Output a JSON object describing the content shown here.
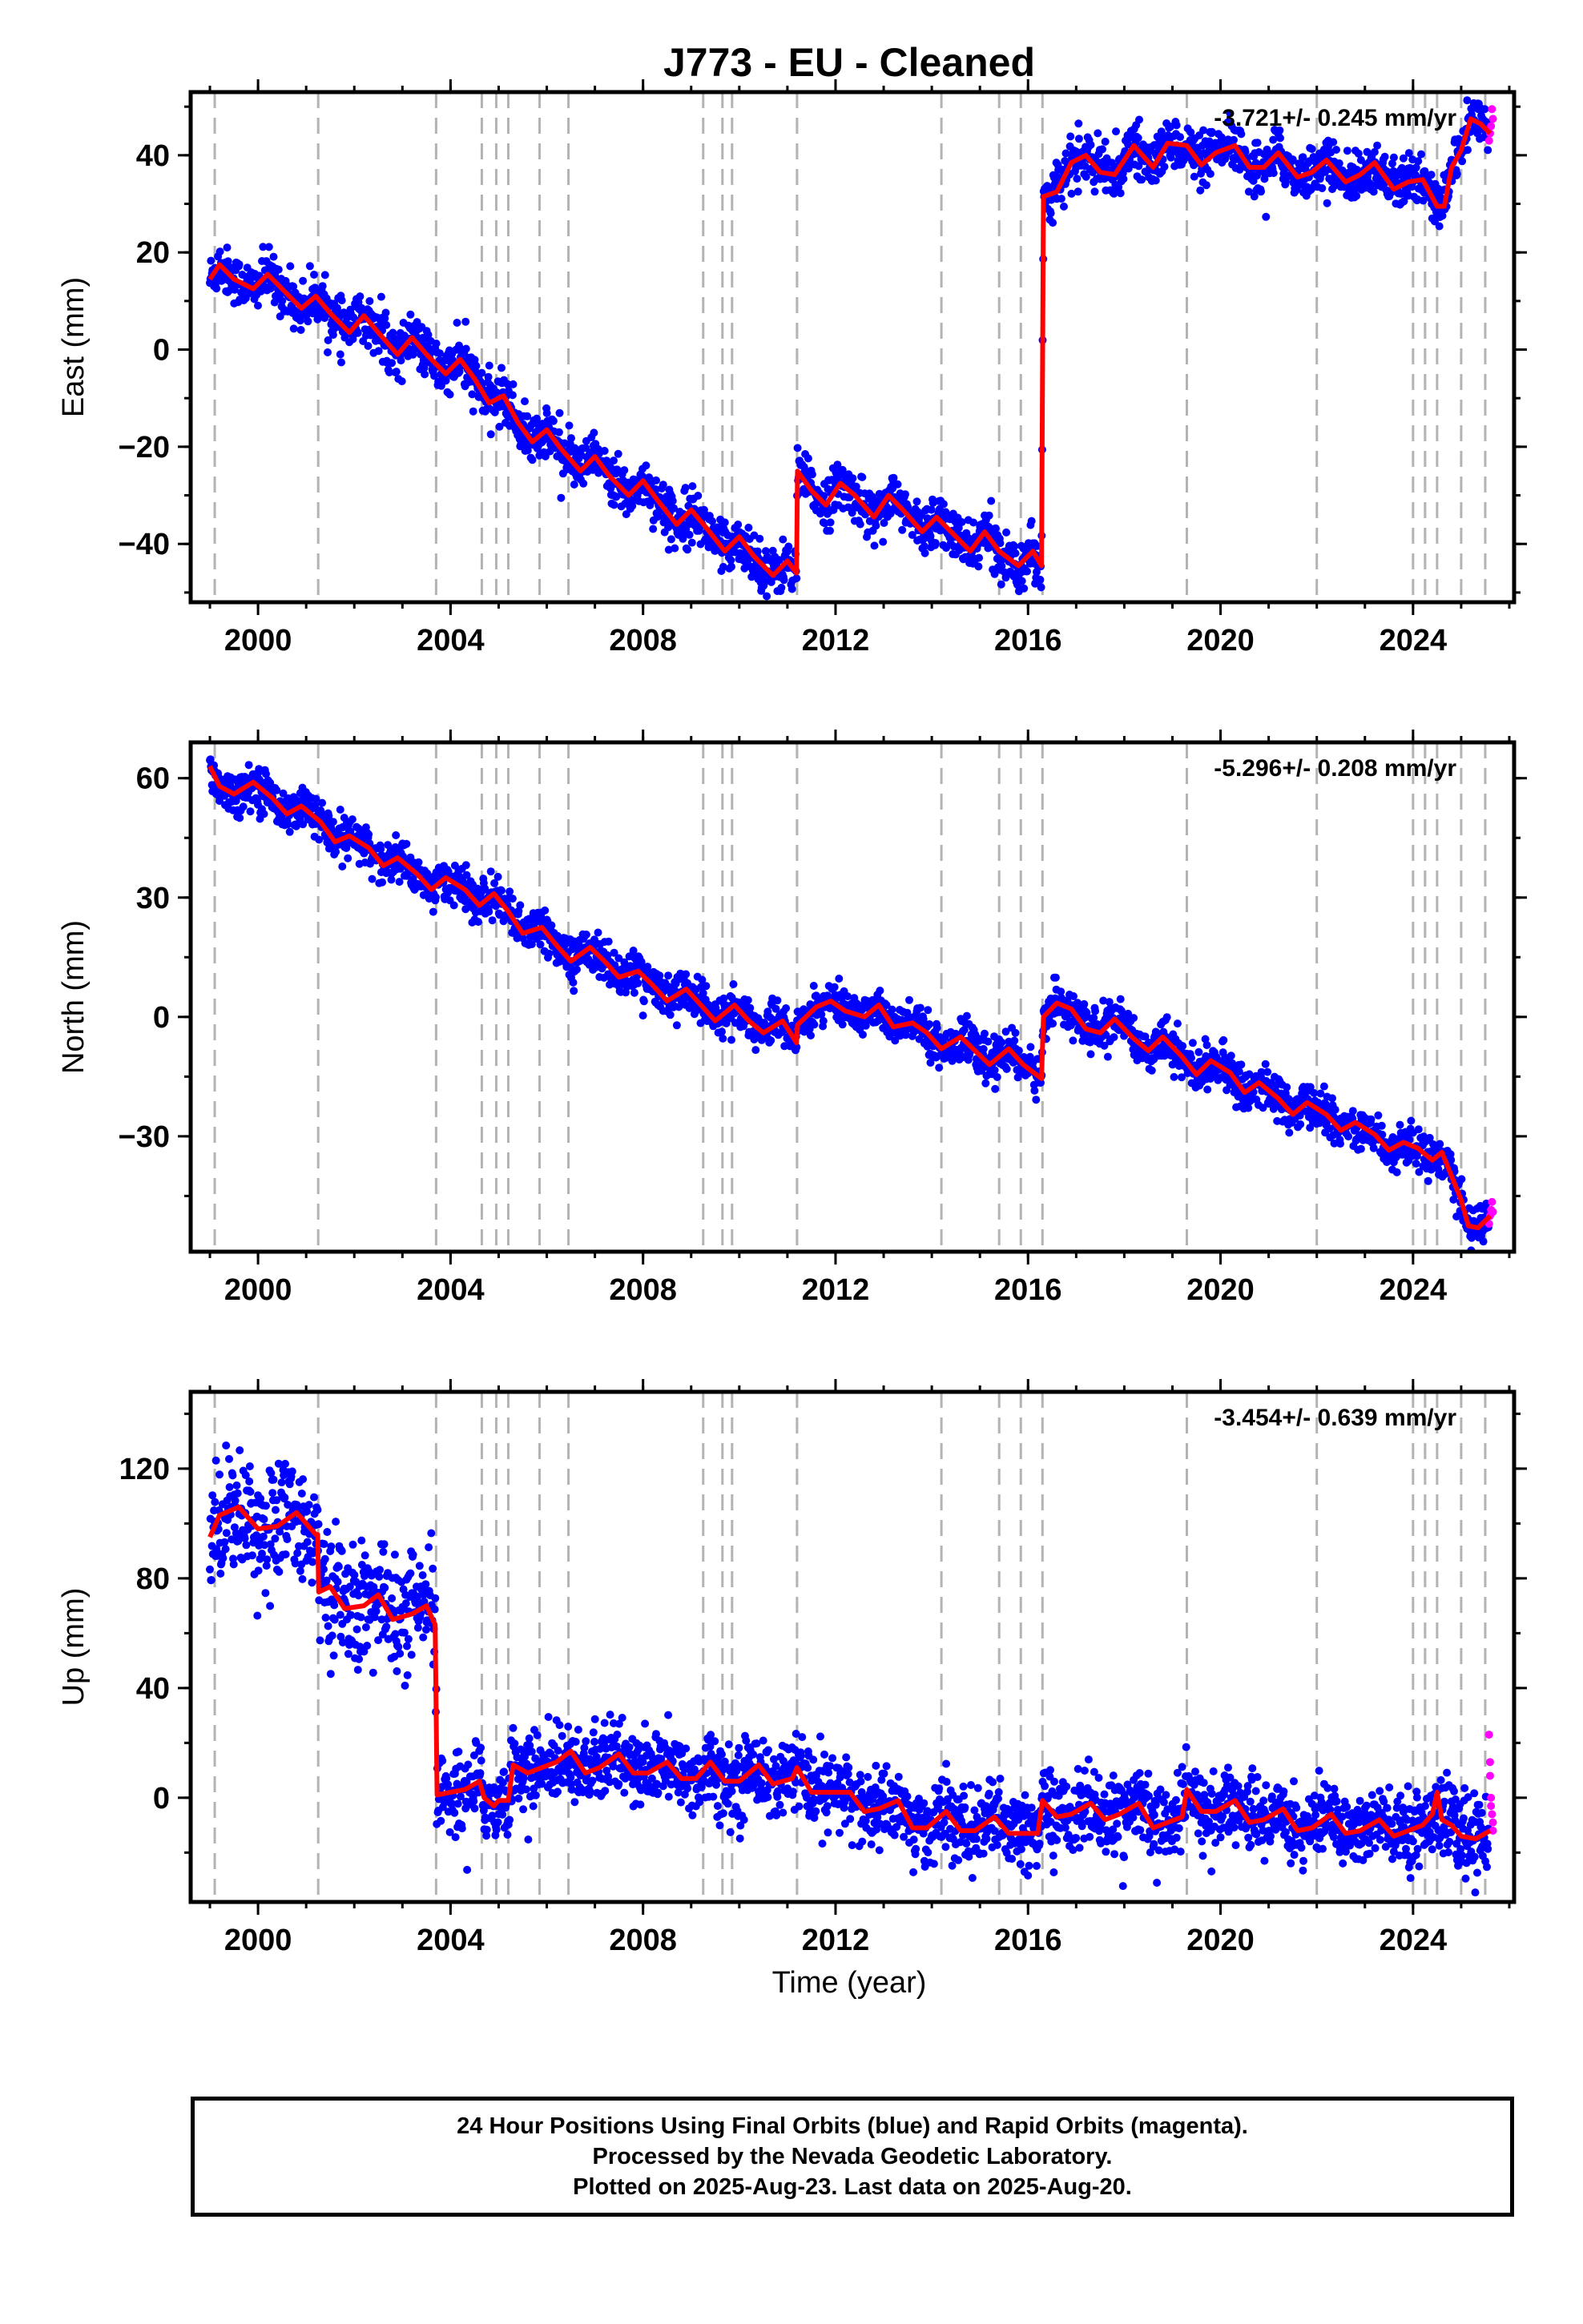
{
  "title": "J773  - EU - Cleaned",
  "xlabel": "Time (year)",
  "colors": {
    "final": "#0000ff",
    "rapid": "#ff00ff",
    "model": "#ff0000",
    "equipment_lines": "#b3b3b3"
  },
  "footer": {
    "line1": "24 Hour Positions Using Final Orbits (blue) and Rapid Orbits (magenta).",
    "line2": "Processed by the Nevada Geodetic Laboratory.",
    "line3": "Plotted on 2025-Aug-23. Last data on 2025-Aug-20."
  },
  "chart_data": [
    {
      "type": "scatter",
      "panel": "east",
      "ylabel": "East (mm)",
      "rate_text": "-3.721+/- 0.245 mm/yr",
      "xlim": [
        1998.6,
        2026.1
      ],
      "ylim": [
        -52,
        53
      ],
      "xticks": [
        2000,
        2004,
        2008,
        2012,
        2016,
        2020,
        2024
      ],
      "yticks": [
        -40,
        -20,
        0,
        20,
        40
      ],
      "grid": false,
      "dashed_vertical_lines_x": [
        1999.1,
        2001.25,
        2003.7,
        2004.65,
        2004.95,
        2005.2,
        2005.85,
        2006.45,
        2009.25,
        2009.65,
        2009.85,
        2011.2,
        2014.2,
        2015.4,
        2015.85,
        2016.3,
        2019.3,
        2022.0,
        2024.0,
        2024.25,
        2024.5,
        2025.0,
        2025.5
      ],
      "model_line": [
        [
          1999.0,
          14.5
        ],
        [
          1999.2,
          17.5
        ],
        [
          1999.5,
          14.5
        ],
        [
          1999.9,
          12.5
        ],
        [
          2000.2,
          15.5
        ],
        [
          2000.5,
          12.5
        ],
        [
          2000.9,
          8.5
        ],
        [
          2001.2,
          11.0
        ],
        [
          2001.5,
          7.5
        ],
        [
          2001.9,
          3.5
        ],
        [
          2002.2,
          7.0
        ],
        [
          2002.5,
          3.5
        ],
        [
          2002.9,
          -1.0
        ],
        [
          2003.2,
          2.5
        ],
        [
          2003.5,
          -1.0
        ],
        [
          2003.9,
          -5.0
        ],
        [
          2004.2,
          -2.0
        ],
        [
          2004.5,
          -6.0
        ],
        [
          2004.8,
          -11.0
        ],
        [
          2005.1,
          -9.5
        ],
        [
          2005.4,
          -15.0
        ],
        [
          2005.7,
          -19.0
        ],
        [
          2006.0,
          -16.5
        ],
        [
          2006.3,
          -20.5
        ],
        [
          2006.7,
          -25.0
        ],
        [
          2007.0,
          -22.0
        ],
        [
          2007.3,
          -26.0
        ],
        [
          2007.7,
          -30.0
        ],
        [
          2008.0,
          -27.0
        ],
        [
          2008.3,
          -31.0
        ],
        [
          2008.7,
          -36.0
        ],
        [
          2009.0,
          -33.0
        ],
        [
          2009.3,
          -36.5
        ],
        [
          2009.7,
          -41.5
        ],
        [
          2010.0,
          -38.5
        ],
        [
          2010.3,
          -42.5
        ],
        [
          2010.7,
          -46.5
        ],
        [
          2011.0,
          -43.5
        ],
        [
          2011.19,
          -46.0
        ],
        [
          2011.21,
          -25.0
        ],
        [
          2011.5,
          -29.0
        ],
        [
          2011.8,
          -32.0
        ],
        [
          2012.1,
          -27.5
        ],
        [
          2012.4,
          -30.0
        ],
        [
          2012.8,
          -34.5
        ],
        [
          2013.1,
          -30.0
        ],
        [
          2013.4,
          -33.0
        ],
        [
          2013.8,
          -37.5
        ],
        [
          2014.1,
          -34.5
        ],
        [
          2014.4,
          -37.5
        ],
        [
          2014.8,
          -41.5
        ],
        [
          2015.1,
          -37.5
        ],
        [
          2015.4,
          -41.5
        ],
        [
          2015.8,
          -44.5
        ],
        [
          2016.1,
          -41.5
        ],
        [
          2016.28,
          -44.5
        ],
        [
          2016.32,
          31.5
        ],
        [
          2016.6,
          32.5
        ],
        [
          2016.9,
          38.5
        ],
        [
          2017.2,
          40.0
        ],
        [
          2017.5,
          36.5
        ],
        [
          2017.8,
          36.0
        ],
        [
          2018.2,
          42.0
        ],
        [
          2018.6,
          37.5
        ],
        [
          2018.9,
          42.5
        ],
        [
          2019.3,
          42.0
        ],
        [
          2019.6,
          38.0
        ],
        [
          2019.9,
          40.5
        ],
        [
          2020.3,
          42.0
        ],
        [
          2020.6,
          37.5
        ],
        [
          2020.9,
          37.5
        ],
        [
          2021.2,
          40.5
        ],
        [
          2021.6,
          35.5
        ],
        [
          2021.9,
          36.5
        ],
        [
          2022.2,
          39.0
        ],
        [
          2022.6,
          34.5
        ],
        [
          2022.9,
          36.0
        ],
        [
          2023.2,
          38.5
        ],
        [
          2023.6,
          33.0
        ],
        [
          2023.9,
          34.5
        ],
        [
          2024.2,
          35.0
        ],
        [
          2024.5,
          29.5
        ],
        [
          2024.65,
          29.5
        ],
        [
          2024.8,
          37.5
        ],
        [
          2025.0,
          41.0
        ],
        [
          2025.2,
          47.5
        ],
        [
          2025.4,
          46.5
        ],
        [
          2025.6,
          44.5
        ]
      ],
      "noise_amplitude_mm": 2.5,
      "rapid_points": [
        [
          2025.58,
          43.0
        ],
        [
          2025.6,
          44.5
        ],
        [
          2025.62,
          46.0
        ],
        [
          2025.64,
          49.5
        ],
        [
          2025.66,
          47.5
        ]
      ],
      "series": [
        {
          "name": "Final Orbits",
          "color": "#0000ff"
        },
        {
          "name": "Rapid Orbits",
          "color": "#ff00ff"
        }
      ]
    },
    {
      "type": "scatter",
      "panel": "north",
      "ylabel": "North (mm)",
      "rate_text": "-5.296+/- 0.208 mm/yr",
      "xlim": [
        1998.6,
        2026.1
      ],
      "ylim": [
        -59,
        69
      ],
      "xticks": [
        2000,
        2004,
        2008,
        2012,
        2016,
        2020,
        2024
      ],
      "yticks": [
        -30,
        0,
        30,
        60
      ],
      "grid": false,
      "dashed_vertical_lines_x": [
        1999.1,
        2001.25,
        2003.7,
        2004.65,
        2004.95,
        2005.2,
        2005.85,
        2006.45,
        2009.25,
        2009.65,
        2009.85,
        2011.2,
        2014.2,
        2015.4,
        2015.85,
        2016.3,
        2019.3,
        2022.0,
        2024.0,
        2024.25,
        2024.5,
        2025.0,
        2025.5
      ],
      "model_line": [
        [
          1999.0,
          63.0
        ],
        [
          1999.2,
          58.0
        ],
        [
          1999.5,
          56.0
        ],
        [
          1999.9,
          59.0
        ],
        [
          2000.3,
          55.0
        ],
        [
          2000.6,
          51.0
        ],
        [
          2000.9,
          53.0
        ],
        [
          2001.3,
          49.0
        ],
        [
          2001.6,
          44.0
        ],
        [
          2001.9,
          45.5
        ],
        [
          2002.3,
          42.5
        ],
        [
          2002.6,
          38.0
        ],
        [
          2002.9,
          40.0
        ],
        [
          2003.3,
          36.0
        ],
        [
          2003.6,
          32.0
        ],
        [
          2003.9,
          35.0
        ],
        [
          2004.3,
          32.0
        ],
        [
          2004.6,
          28.0
        ],
        [
          2004.9,
          31.0
        ],
        [
          2005.2,
          26.5
        ],
        [
          2005.5,
          21.0
        ],
        [
          2005.9,
          22.5
        ],
        [
          2006.2,
          18.0
        ],
        [
          2006.5,
          14.0
        ],
        [
          2006.9,
          17.5
        ],
        [
          2007.2,
          14.0
        ],
        [
          2007.5,
          10.0
        ],
        [
          2007.9,
          11.5
        ],
        [
          2008.2,
          8.0
        ],
        [
          2008.5,
          4.0
        ],
        [
          2008.9,
          7.0
        ],
        [
          2009.2,
          3.0
        ],
        [
          2009.5,
          -1.0
        ],
        [
          2009.9,
          3.0
        ],
        [
          2010.2,
          -1.0
        ],
        [
          2010.5,
          -4.0
        ],
        [
          2010.9,
          -1.0
        ],
        [
          2011.19,
          -6.5
        ],
        [
          2011.21,
          -2.0
        ],
        [
          2011.6,
          2.5
        ],
        [
          2011.9,
          4.0
        ],
        [
          2012.2,
          1.5
        ],
        [
          2012.6,
          0.0
        ],
        [
          2012.9,
          3.0
        ],
        [
          2013.2,
          -2.5
        ],
        [
          2013.6,
          -1.5
        ],
        [
          2013.9,
          -4.0
        ],
        [
          2014.2,
          -8.0
        ],
        [
          2014.6,
          -5.0
        ],
        [
          2014.9,
          -8.5
        ],
        [
          2015.2,
          -12.0
        ],
        [
          2015.6,
          -8.0
        ],
        [
          2015.9,
          -12.0
        ],
        [
          2016.28,
          -15.5
        ],
        [
          2016.32,
          0.0
        ],
        [
          2016.6,
          3.5
        ],
        [
          2016.9,
          2.0
        ],
        [
          2017.2,
          -3.0
        ],
        [
          2017.5,
          -4.0
        ],
        [
          2017.8,
          -0.5
        ],
        [
          2018.2,
          -5.5
        ],
        [
          2018.5,
          -8.5
        ],
        [
          2018.8,
          -5.0
        ],
        [
          2019.2,
          -10.0
        ],
        [
          2019.5,
          -14.5
        ],
        [
          2019.8,
          -11.0
        ],
        [
          2020.2,
          -14.0
        ],
        [
          2020.5,
          -19.0
        ],
        [
          2020.8,
          -16.5
        ],
        [
          2021.2,
          -20.5
        ],
        [
          2021.5,
          -24.5
        ],
        [
          2021.8,
          -21.5
        ],
        [
          2022.2,
          -24.5
        ],
        [
          2022.5,
          -28.5
        ],
        [
          2022.8,
          -26.5
        ],
        [
          2023.2,
          -29.5
        ],
        [
          2023.5,
          -33.5
        ],
        [
          2023.8,
          -31.5
        ],
        [
          2024.1,
          -33.0
        ],
        [
          2024.4,
          -36.0
        ],
        [
          2024.6,
          -34.0
        ],
        [
          2024.8,
          -40.0
        ],
        [
          2025.0,
          -46.0
        ],
        [
          2025.15,
          -52.5
        ],
        [
          2025.35,
          -53.0
        ],
        [
          2025.6,
          -50.0
        ]
      ],
      "noise_amplitude_mm": 2.6,
      "rapid_points": [
        [
          2025.58,
          -52.0
        ],
        [
          2025.6,
          -50.0
        ],
        [
          2025.62,
          -48.5
        ],
        [
          2025.64,
          -46.5
        ],
        [
          2025.66,
          -49.0
        ]
      ],
      "series": [
        {
          "name": "Final Orbits",
          "color": "#0000ff"
        },
        {
          "name": "Rapid Orbits",
          "color": "#ff00ff"
        }
      ]
    },
    {
      "type": "scatter",
      "panel": "up",
      "ylabel": "Up (mm)",
      "rate_text": "-3.454+/- 0.639 mm/yr",
      "xlim": [
        1998.6,
        2026.1
      ],
      "ylim": [
        -38,
        148
      ],
      "xticks": [
        2000,
        2004,
        2008,
        2012,
        2016,
        2020,
        2024
      ],
      "yticks": [
        0,
        40,
        80,
        120
      ],
      "grid": false,
      "dashed_vertical_lines_x": [
        1999.1,
        2001.25,
        2003.7,
        2004.65,
        2004.95,
        2005.2,
        2005.85,
        2006.45,
        2009.25,
        2009.65,
        2009.85,
        2011.2,
        2014.2,
        2015.4,
        2015.85,
        2016.3,
        2019.3,
        2022.0,
        2024.0,
        2024.25,
        2024.5,
        2025.0,
        2025.5
      ],
      "model_line": [
        [
          1999.0,
          95.0
        ],
        [
          1999.2,
          103.0
        ],
        [
          1999.6,
          106.0
        ],
        [
          2000.0,
          98.0
        ],
        [
          2000.4,
          99.0
        ],
        [
          2000.8,
          104.0
        ],
        [
          2001.2,
          96.0
        ],
        [
          2001.24,
          96.0
        ],
        [
          2001.26,
          75.0
        ],
        [
          2001.5,
          77.0
        ],
        [
          2001.8,
          69.0
        ],
        [
          2002.2,
          70.0
        ],
        [
          2002.5,
          74.0
        ],
        [
          2002.8,
          65.0
        ],
        [
          2003.2,
          67.0
        ],
        [
          2003.5,
          70.0
        ],
        [
          2003.68,
          63.0
        ],
        [
          2003.72,
          1.0
        ],
        [
          2004.0,
          2.0
        ],
        [
          2004.3,
          3.0
        ],
        [
          2004.6,
          6.0
        ],
        [
          2004.7,
          0.0
        ],
        [
          2004.9,
          -3.0
        ],
        [
          2005.0,
          -1.0
        ],
        [
          2005.2,
          -1.0
        ],
        [
          2005.3,
          12.0
        ],
        [
          2005.6,
          9.0
        ],
        [
          2005.9,
          11.0
        ],
        [
          2006.2,
          13.0
        ],
        [
          2006.5,
          17.0
        ],
        [
          2006.8,
          9.0
        ],
        [
          2007.1,
          11.0
        ],
        [
          2007.5,
          16.0
        ],
        [
          2007.8,
          9.0
        ],
        [
          2008.1,
          9.0
        ],
        [
          2008.5,
          13.0
        ],
        [
          2008.8,
          7.0
        ],
        [
          2009.1,
          7.0
        ],
        [
          2009.4,
          13.0
        ],
        [
          2009.7,
          6.0
        ],
        [
          2010.0,
          6.0
        ],
        [
          2010.4,
          12.0
        ],
        [
          2010.7,
          5.0
        ],
        [
          2011.1,
          7.0
        ],
        [
          2011.2,
          11.0
        ],
        [
          2011.5,
          2.0
        ],
        [
          2011.9,
          2.0
        ],
        [
          2012.3,
          2.0
        ],
        [
          2012.6,
          -5.0
        ],
        [
          2012.9,
          -4.0
        ],
        [
          2013.3,
          -1.0
        ],
        [
          2013.6,
          -11.0
        ],
        [
          2013.9,
          -11.0
        ],
        [
          2014.3,
          -5.0
        ],
        [
          2014.6,
          -12.0
        ],
        [
          2014.9,
          -12.0
        ],
        [
          2015.3,
          -7.0
        ],
        [
          2015.6,
          -13.0
        ],
        [
          2015.9,
          -13.0
        ],
        [
          2016.2,
          -13.0
        ],
        [
          2016.3,
          -1.0
        ],
        [
          2016.6,
          -7.0
        ],
        [
          2016.9,
          -6.0
        ],
        [
          2017.3,
          -2.0
        ],
        [
          2017.6,
          -8.0
        ],
        [
          2017.9,
          -6.0
        ],
        [
          2018.3,
          -2.0
        ],
        [
          2018.6,
          -11.0
        ],
        [
          2018.9,
          -9.0
        ],
        [
          2019.2,
          -7.0
        ],
        [
          2019.3,
          3.0
        ],
        [
          2019.6,
          -5.0
        ],
        [
          2019.9,
          -5.0
        ],
        [
          2020.3,
          -1.0
        ],
        [
          2020.6,
          -9.0
        ],
        [
          2020.9,
          -8.0
        ],
        [
          2021.3,
          -4.0
        ],
        [
          2021.6,
          -12.0
        ],
        [
          2021.9,
          -11.0
        ],
        [
          2022.3,
          -6.0
        ],
        [
          2022.6,
          -13.0
        ],
        [
          2022.9,
          -12.0
        ],
        [
          2023.3,
          -8.0
        ],
        [
          2023.6,
          -14.0
        ],
        [
          2023.9,
          -12.0
        ],
        [
          2024.2,
          -10.0
        ],
        [
          2024.4,
          -6.0
        ],
        [
          2024.5,
          2.0
        ],
        [
          2024.6,
          -8.0
        ],
        [
          2024.8,
          -10.0
        ],
        [
          2025.0,
          -14.0
        ],
        [
          2025.3,
          -15.0
        ],
        [
          2025.6,
          -12.0
        ]
      ],
      "noise_amplitude_mm": 7.0,
      "rapid_points": [
        [
          2025.58,
          23.0
        ],
        [
          2025.6,
          13.0
        ],
        [
          2025.6,
          8.0
        ],
        [
          2025.62,
          0.0
        ],
        [
          2025.62,
          -3.0
        ],
        [
          2025.64,
          -6.0
        ],
        [
          2025.66,
          -9.0
        ],
        [
          2025.66,
          -12.0
        ]
      ],
      "series": [
        {
          "name": "Final Orbits",
          "color": "#0000ff"
        },
        {
          "name": "Rapid Orbits",
          "color": "#ff00ff"
        }
      ]
    }
  ]
}
